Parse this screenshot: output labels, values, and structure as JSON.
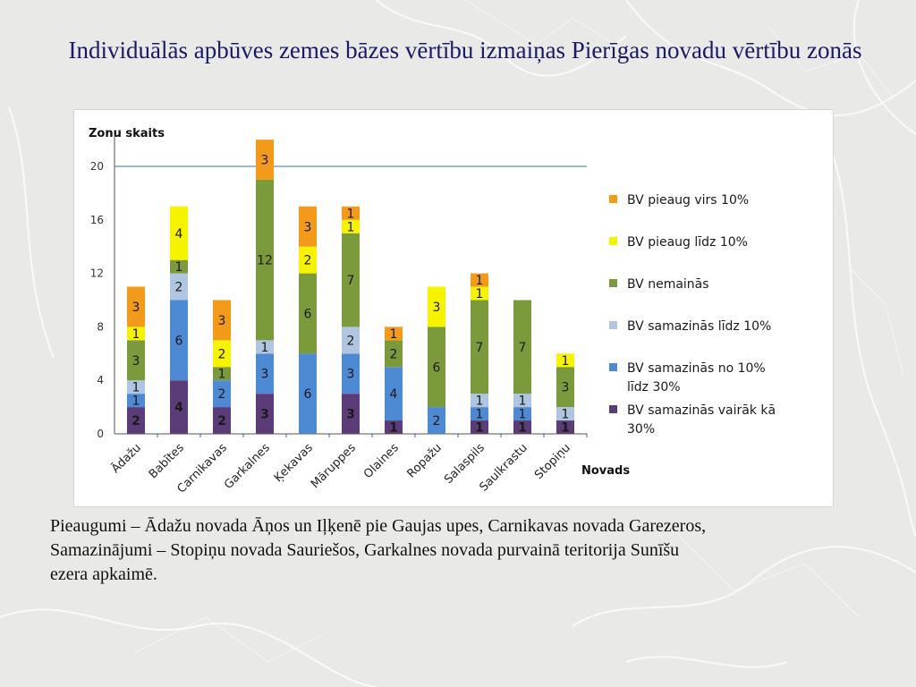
{
  "title": "Individuālās apbūves zemes bāzes vērtību izmaiņas Pierīgas novadu vērtību zonās",
  "caption": {
    "line1": "Pieaugumi – Ādažu novada Āņos un Iļķenē pie Gaujas upes, Carnikavas novada Garezeros,",
    "line2": "Samazinājumi – Stopiņu novada Sauriešos, Garkalnes novada purvainā teritorija Sunīšu",
    "line3": "ezera apkaimē."
  },
  "chart_data": {
    "type": "bar",
    "stacked": true,
    "title": "",
    "xlabel": "Novads",
    "ylabel": "Zonu skaits",
    "ylim": [
      0,
      22
    ],
    "yticks": [
      0,
      4,
      8,
      12,
      16,
      20
    ],
    "grid": false,
    "reference_line": 20,
    "legend_position": "right",
    "categories": [
      "Ādažu",
      "Babītes",
      "Carnikavas",
      "Garkalnes",
      "Ķekavas",
      "Māruppes",
      "Olaines",
      "Ropažu",
      "Salaspils",
      "Saulkrastu",
      "Stopiņu"
    ],
    "series": [
      {
        "name": "BV samazinās vairāk kā 30%",
        "color": "#5b3c78",
        "values": [
          2,
          4,
          2,
          3,
          0,
          3,
          1,
          0,
          1,
          1,
          1
        ]
      },
      {
        "name": "BV samazinās no 10% līdz 30%",
        "color": "#4d8ad3",
        "values": [
          1,
          6,
          2,
          3,
          6,
          3,
          4,
          2,
          1,
          1,
          0
        ]
      },
      {
        "name": "BV samazinās līdz 10%",
        "color": "#b0c6e0",
        "values": [
          1,
          2,
          0,
          1,
          0,
          2,
          0,
          0,
          1,
          1,
          1
        ]
      },
      {
        "name": "BV nemainās",
        "color": "#7a9a3b",
        "values": [
          3,
          1,
          1,
          12,
          6,
          7,
          2,
          6,
          7,
          7,
          3
        ]
      },
      {
        "name": "BV pieaug līdz 10%",
        "color": "#f6f200",
        "values": [
          1,
          4,
          2,
          0,
          2,
          1,
          0,
          3,
          1,
          0,
          1
        ]
      },
      {
        "name": "BV pieaug virs 10%",
        "color": "#f39a1b",
        "values": [
          3,
          0,
          3,
          3,
          3,
          1,
          1,
          0,
          1,
          0,
          0
        ]
      }
    ],
    "legend_labels": [
      [
        "BV pieaug  virs 10%"
      ],
      [
        "BV pieaug  līdz 10%"
      ],
      [
        "BV nemainās"
      ],
      [
        "BV samazinās līdz 10%"
      ],
      [
        "BV samazinās no 10%",
        "līdz 30%"
      ],
      [
        "BV samazinās vairāk kā",
        "30%"
      ]
    ]
  }
}
